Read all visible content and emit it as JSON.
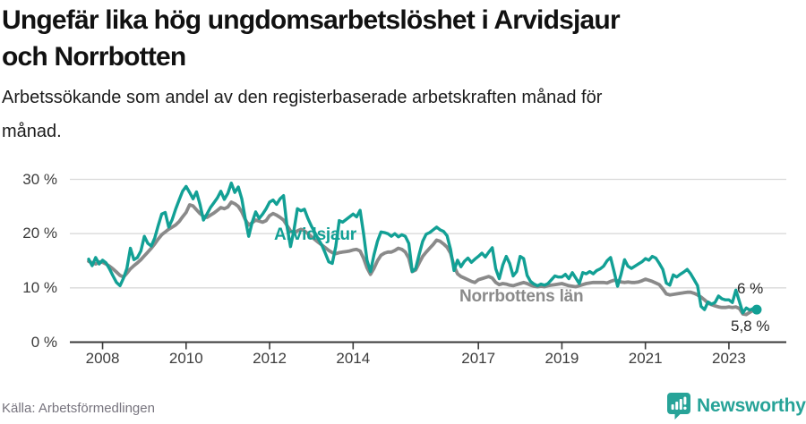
{
  "header": {
    "title_lines": [
      "Ungefär lika hög ungdomsarbetslöshet i Arvidsjaur",
      "och Norrbotten"
    ],
    "subtitle_lines": [
      "Arbetssökande som andel av den registerbaserade arbetskraften månad för",
      "månad."
    ]
  },
  "footer": {
    "source": "Källa: Arbetsförmedlingen",
    "logo_text": "Newsworthy"
  },
  "colors": {
    "accent_teal": "#12a095",
    "line_gray": "#8a8a8a",
    "grid": "#dadada",
    "axis": "#3a3a3a",
    "logo_teal": "#27a398"
  },
  "chart_data": {
    "type": "line",
    "title": "Ungefär lika hög ungdomsarbetslöshet i Arvidsjaur och Norrbotten",
    "subtitle": "Arbetssökande som andel av den registerbaserade arbetskraften månad för månad.",
    "frequency": "monthly",
    "x_start": "2007-09",
    "x_end": "2023-09",
    "ylim": [
      0,
      30
    ],
    "grid": "horizontal",
    "legend_position": "inline-labels",
    "yticks": [
      {
        "value": 0,
        "label": "0 %"
      },
      {
        "value": 10,
        "label": "10 %"
      },
      {
        "value": 20,
        "label": "20 %"
      },
      {
        "value": 30,
        "label": "30 %"
      }
    ],
    "xticks": [
      2008,
      2010,
      2012,
      2014,
      2017,
      2019,
      2021,
      2023
    ],
    "series": [
      {
        "name": "Arvidsjaur",
        "color": "#12a095",
        "end_label": "6 %",
        "end_value": 6.0,
        "values": [
          15.3,
          14.1,
          15.6,
          14.4,
          15.1,
          14.6,
          13.5,
          12.2,
          11.0,
          10.4,
          11.8,
          13.6,
          17.3,
          15.2,
          15.6,
          16.8,
          19.5,
          18.2,
          17.7,
          19.2,
          21.5,
          23.6,
          23.9,
          21.2,
          22.6,
          24.5,
          26.2,
          27.8,
          28.7,
          27.6,
          26.4,
          27.7,
          25.4,
          22.5,
          23.6,
          24.8,
          25.7,
          26.6,
          27.8,
          26.3,
          27.4,
          29.3,
          27.6,
          28.6,
          26.4,
          22.8,
          19.5,
          22.1,
          24.0,
          22.8,
          23.6,
          24.6,
          25.8,
          26.2,
          25.4,
          26.4,
          27.0,
          21.3,
          17.6,
          20.6,
          24.6,
          24.2,
          24.5,
          22.8,
          21.4,
          20.2,
          19.0,
          17.9,
          16.4,
          14.8,
          14.5,
          17.6,
          22.4,
          22.1,
          22.6,
          23.1,
          23.6,
          23.1,
          24.3,
          20.1,
          15.1,
          13.0,
          16.1,
          18.6,
          20.3,
          20.2,
          20.0,
          19.5,
          20.0,
          19.4,
          19.8,
          19.5,
          18.2,
          13.0,
          13.6,
          16.2,
          18.6,
          19.9,
          20.2,
          20.7,
          21.2,
          20.7,
          20.4,
          19.6,
          17.1,
          13.2,
          15.1,
          13.9,
          14.9,
          15.5,
          14.7,
          15.3,
          15.8,
          16.4,
          15.7,
          16.6,
          17.4,
          13.5,
          11.7,
          14.2,
          15.8,
          14.5,
          12.2,
          13.0,
          15.8,
          15.4,
          12.3,
          11.2,
          10.7,
          10.4,
          10.7,
          10.5,
          10.8,
          11.5,
          12.2,
          12.0,
          12.0,
          12.5,
          11.7,
          12.8,
          11.8,
          10.8,
          12.8,
          12.6,
          13.0,
          12.6,
          13.2,
          13.5,
          14.0,
          15.0,
          15.6,
          13.0,
          10.3,
          12.5,
          15.2,
          14.0,
          13.6,
          14.0,
          14.4,
          14.8,
          15.4,
          15.1,
          15.8,
          15.5,
          14.5,
          13.4,
          10.9,
          10.5,
          12.4,
          12.0,
          12.5,
          12.9,
          13.4,
          12.6,
          11.5,
          10.4,
          6.6,
          6.0,
          7.4,
          7.0,
          7.3,
          8.5,
          8.0,
          7.8,
          7.8,
          7.3,
          9.6,
          7.5,
          5.4,
          6.3,
          5.9,
          6.2,
          6.0
        ]
      },
      {
        "name": "Norrbottens län",
        "color": "#8a8a8a",
        "end_label": "5,8 %",
        "end_value": 5.8,
        "values": [
          14.9,
          14.6,
          14.4,
          14.8,
          14.7,
          14.4,
          14.0,
          13.5,
          12.9,
          12.3,
          12.0,
          12.7,
          13.5,
          14.1,
          14.6,
          15.2,
          15.9,
          16.6,
          17.3,
          18.1,
          19.0,
          19.8,
          20.3,
          20.8,
          21.2,
          21.6,
          22.2,
          23.1,
          23.9,
          25.3,
          25.1,
          24.4,
          23.7,
          23.2,
          23.0,
          23.4,
          23.8,
          24.3,
          24.8,
          24.6,
          24.9,
          25.8,
          25.5,
          25.0,
          24.0,
          22.6,
          21.6,
          22.0,
          22.5,
          22.3,
          22.1,
          22.4,
          23.3,
          23.7,
          23.4,
          23.0,
          22.5,
          21.5,
          20.5,
          20.1,
          20.5,
          20.8,
          20.5,
          20.0,
          19.4,
          18.9,
          18.4,
          17.9,
          17.4,
          16.9,
          16.5,
          16.3,
          16.5,
          16.6,
          16.7,
          16.8,
          17.0,
          17.1,
          16.8,
          15.5,
          13.7,
          12.5,
          13.6,
          15.0,
          16.0,
          16.4,
          16.6,
          16.6,
          16.9,
          17.3,
          17.1,
          16.6,
          15.5,
          13.0,
          13.3,
          14.6,
          15.8,
          16.6,
          17.3,
          18.0,
          18.8,
          18.6,
          18.1,
          17.5,
          16.4,
          14.0,
          12.6,
          12.1,
          11.8,
          11.5,
          11.2,
          11.0,
          11.5,
          11.7,
          11.9,
          12.1,
          11.8,
          11.0,
          10.6,
          10.8,
          10.7,
          10.5,
          10.4,
          10.6,
          10.8,
          11.0,
          10.8,
          10.5,
          10.3,
          10.2,
          10.3,
          10.2,
          10.4,
          10.5,
          10.6,
          10.7,
          10.8,
          10.6,
          10.4,
          10.3,
          10.2,
          10.4,
          10.6,
          10.8,
          10.9,
          11.0,
          11.0,
          11.0,
          11.0,
          10.9,
          11.2,
          11.4,
          11.3,
          11.1,
          11.0,
          11.1,
          11.0,
          11.0,
          11.1,
          11.3,
          11.6,
          11.4,
          11.2,
          10.9,
          10.6,
          9.8,
          8.9,
          8.7,
          8.8,
          8.9,
          9.0,
          9.1,
          9.2,
          9.2,
          9.0,
          8.7,
          8.3,
          7.8,
          7.2,
          6.9,
          6.7,
          6.5,
          6.4,
          6.4,
          6.5,
          6.4,
          6.5,
          6.2,
          5.2,
          5.1,
          5.5,
          5.9,
          5.8
        ]
      }
    ]
  }
}
